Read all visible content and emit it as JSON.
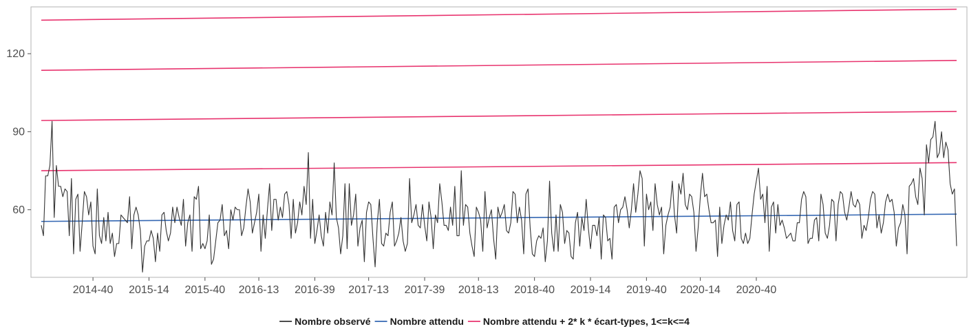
{
  "chart_data": {
    "type": "line",
    "title": "",
    "xlabel": "",
    "ylabel": "",
    "ylim": [
      34,
      138
    ],
    "yticks": [
      60,
      90,
      120
    ],
    "xtick_labels": [
      "2014-40",
      "2015-14",
      "2015-40",
      "2016-13",
      "2016-39",
      "2017-13",
      "2017-39",
      "2018-13",
      "2018-40",
      "2019-14",
      "2019-40",
      "2020-14",
      "2020-40"
    ],
    "xtick_positions": [
      24,
      50,
      76,
      101,
      127,
      152,
      178,
      203,
      229,
      255,
      281,
      306,
      332
    ],
    "grid": false,
    "legend_position": "bottom",
    "observed": {
      "name": "Nombre observé",
      "color": "#333333",
      "week_index_start": 0,
      "values": [
        54,
        50,
        73,
        73,
        77,
        94,
        57,
        77,
        69,
        69,
        65,
        68,
        67,
        50,
        72,
        43,
        64,
        66,
        44,
        55,
        67,
        65,
        58,
        63,
        46,
        43,
        68,
        50,
        47,
        57,
        48,
        59,
        47,
        51,
        42,
        47,
        47,
        58,
        57,
        56,
        55,
        65,
        45,
        58,
        61,
        58,
        52,
        36,
        46,
        48,
        48,
        52,
        49,
        40,
        51,
        44,
        58,
        59,
        52,
        48,
        51,
        61,
        55,
        61,
        57,
        54,
        64,
        46,
        55,
        58,
        44,
        65,
        64,
        69,
        45,
        47,
        45,
        48,
        58,
        39,
        41,
        48,
        55,
        56,
        62,
        50,
        52,
        45,
        60,
        56,
        61,
        60,
        60,
        50,
        53,
        61,
        68,
        63,
        51,
        55,
        59,
        66,
        44,
        58,
        49,
        60,
        70,
        52,
        64,
        64,
        56,
        61,
        57,
        66,
        67,
        62,
        49,
        64,
        51,
        55,
        63,
        58,
        69,
        62,
        82,
        49,
        64,
        47,
        52,
        58,
        50,
        46,
        59,
        51,
        63,
        58,
        78,
        57,
        53,
        43,
        50,
        70,
        45,
        70,
        54,
        58,
        66,
        46,
        53,
        56,
        40,
        59,
        63,
        62,
        49,
        38,
        55,
        64,
        47,
        46,
        51,
        50,
        59,
        63,
        46,
        48,
        51,
        57,
        48,
        44,
        47,
        72,
        55,
        58,
        62,
        54,
        53,
        62,
        54,
        48,
        63,
        57,
        45,
        58,
        55,
        70,
        63,
        54,
        54,
        52,
        61,
        54,
        69,
        50,
        50,
        75,
        54,
        62,
        61,
        51,
        46,
        42,
        61,
        59,
        56,
        44,
        67,
        53,
        57,
        60,
        49,
        41,
        61,
        57,
        59,
        62,
        52,
        51,
        55,
        67,
        66,
        55,
        61,
        56,
        43,
        66,
        68,
        53,
        43,
        42,
        48,
        50,
        49,
        53,
        40,
        48,
        71,
        51,
        44,
        58,
        44,
        62,
        59,
        47,
        52,
        51,
        42,
        41,
        55,
        59,
        46,
        57,
        52,
        64,
        53,
        45,
        54,
        54,
        50,
        57,
        41,
        58,
        57,
        48,
        49,
        41,
        61,
        62,
        55,
        60,
        61,
        65,
        60,
        53,
        60,
        70,
        59,
        66,
        75,
        72,
        46,
        66,
        60,
        63,
        52,
        70,
        62,
        58,
        61,
        43,
        54,
        58,
        61,
        71,
        58,
        51,
        70,
        66,
        74,
        62,
        60,
        66,
        65,
        59,
        44,
        53,
        65,
        74,
        65,
        66,
        60,
        55,
        55,
        56,
        42,
        61,
        47,
        54,
        58,
        56,
        63,
        52,
        48,
        62,
        63,
        49,
        47,
        51,
        47,
        49,
        58,
        66,
        71,
        76,
        64,
        66,
        55,
        69,
        44,
        61,
        63,
        51,
        62,
        54,
        56,
        53,
        49,
        50,
        51,
        48,
        48,
        55,
        55,
        64,
        67,
        65,
        47,
        49,
        49,
        56,
        57,
        48,
        66,
        62,
        51,
        49,
        54,
        64,
        63,
        48,
        62,
        67,
        66,
        59,
        56,
        61,
        67,
        62,
        61,
        64,
        62,
        49,
        54,
        52,
        57,
        64,
        67,
        66,
        53,
        58,
        51,
        55,
        63,
        66,
        63,
        64,
        59,
        46,
        53,
        55,
        62,
        58,
        43,
        69,
        70,
        72,
        65,
        62,
        76,
        72,
        58,
        85,
        78,
        87,
        88,
        94,
        80,
        82,
        90,
        80,
        86,
        83,
        70,
        66,
        68,
        46
      ]
    },
    "expected": {
      "name": "Nombre attendu",
      "color": "#3366b2",
      "start_value": 55.5,
      "end_value": 58.3
    },
    "thresholds": {
      "name": "Nombre attendu + 2* k * écart-types, 1<=k<=4",
      "color": "#e8336e",
      "start_values": [
        75.0,
        94.3,
        113.6,
        132.9
      ],
      "end_values": [
        78.1,
        97.8,
        117.4,
        137.1
      ]
    },
    "legend": [
      {
        "label": "Nombre observé",
        "color": "#333333"
      },
      {
        "label": "Nombre attendu",
        "color": "#3366b2"
      },
      {
        "label": "Nombre attendu + 2* k * écart-types, 1<=k<=4",
        "color": "#e8336e"
      }
    ]
  }
}
